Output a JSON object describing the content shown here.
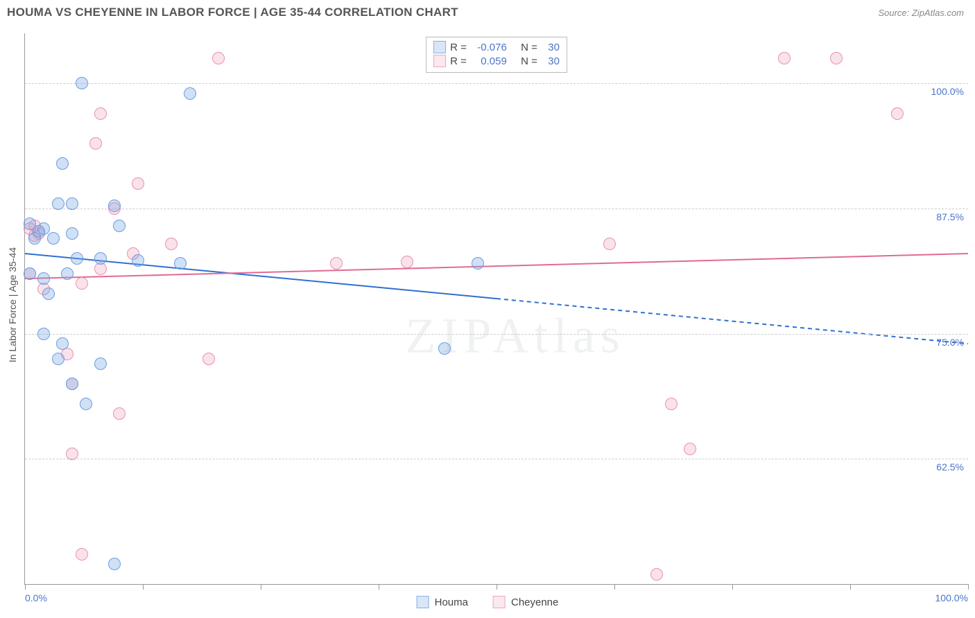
{
  "header": {
    "title": "HOUMA VS CHEYENNE IN LABOR FORCE | AGE 35-44 CORRELATION CHART",
    "source": "Source: ZipAtlas.com"
  },
  "watermark": "ZIPAtlas",
  "y_axis_title": "In Labor Force | Age 35-44",
  "chart": {
    "type": "scatter",
    "xlim": [
      0,
      100
    ],
    "ylim": [
      50,
      105
    ],
    "y_ticks": [
      {
        "value": 62.5,
        "label": "62.5%"
      },
      {
        "value": 75.0,
        "label": "75.0%"
      },
      {
        "value": 87.5,
        "label": "87.5%"
      },
      {
        "value": 100.0,
        "label": "100.0%"
      }
    ],
    "x_ticks": [
      0,
      12.5,
      25,
      37.5,
      50,
      62.5,
      75,
      87.5,
      100
    ],
    "x_tick_labels": [
      {
        "value": 0,
        "label": "0.0%"
      },
      {
        "value": 100,
        "label": "100.0%"
      }
    ],
    "point_radius": 9,
    "series": {
      "houma": {
        "label": "Houma",
        "fill": "rgba(120,165,225,0.35)",
        "stroke": "#6a9de0",
        "r_value": "-0.076",
        "n_value": "30",
        "trend": {
          "y_left": 83.0,
          "y_right": 74.0,
          "solid_until_x": 50,
          "color": "#2f6fd0",
          "width": 2
        },
        "points": [
          {
            "x": 2.0,
            "y": 85.5
          },
          {
            "x": 3.0,
            "y": 84.5
          },
          {
            "x": 5.0,
            "y": 85.0
          },
          {
            "x": 6.0,
            "y": 100.0
          },
          {
            "x": 4.0,
            "y": 92.0
          },
          {
            "x": 3.5,
            "y": 88.0
          },
          {
            "x": 5.0,
            "y": 88.0
          },
          {
            "x": 9.5,
            "y": 87.8
          },
          {
            "x": 5.5,
            "y": 82.5
          },
          {
            "x": 8.0,
            "y": 82.5
          },
          {
            "x": 12.0,
            "y": 82.3
          },
          {
            "x": 16.5,
            "y": 82.0
          },
          {
            "x": 2.0,
            "y": 80.5
          },
          {
            "x": 4.5,
            "y": 81.0
          },
          {
            "x": 2.5,
            "y": 79.0
          },
          {
            "x": 2.0,
            "y": 75.0
          },
          {
            "x": 4.0,
            "y": 74.0
          },
          {
            "x": 3.5,
            "y": 72.5
          },
          {
            "x": 8.0,
            "y": 72.0
          },
          {
            "x": 5.0,
            "y": 70.0
          },
          {
            "x": 6.5,
            "y": 68.0
          },
          {
            "x": 48.0,
            "y": 82.0
          },
          {
            "x": 44.5,
            "y": 73.5
          },
          {
            "x": 17.5,
            "y": 99.0
          },
          {
            "x": 9.5,
            "y": 52.0
          },
          {
            "x": 1.0,
            "y": 84.5
          },
          {
            "x": 1.5,
            "y": 85.2
          },
          {
            "x": 0.5,
            "y": 86.0
          },
          {
            "x": 0.5,
            "y": 81.0
          },
          {
            "x": 10.0,
            "y": 85.8
          }
        ]
      },
      "cheyenne": {
        "label": "Cheyenne",
        "fill": "rgba(240,160,185,0.30)",
        "stroke": "#e891ac",
        "r_value": "0.059",
        "n_value": "30",
        "trend": {
          "y_left": 80.5,
          "y_right": 83.0,
          "solid_until_x": 100,
          "color": "#e06a94",
          "width": 2
        },
        "points": [
          {
            "x": 0.5,
            "y": 85.5
          },
          {
            "x": 1.0,
            "y": 84.8
          },
          {
            "x": 1.5,
            "y": 85.0
          },
          {
            "x": 0.5,
            "y": 81.0
          },
          {
            "x": 8.0,
            "y": 97.0
          },
          {
            "x": 7.5,
            "y": 94.0
          },
          {
            "x": 9.5,
            "y": 87.5
          },
          {
            "x": 6.0,
            "y": 80.0
          },
          {
            "x": 8.0,
            "y": 81.5
          },
          {
            "x": 12.0,
            "y": 90.0
          },
          {
            "x": 15.5,
            "y": 84.0
          },
          {
            "x": 20.5,
            "y": 102.5
          },
          {
            "x": 4.5,
            "y": 73.0
          },
          {
            "x": 5.0,
            "y": 70.0
          },
          {
            "x": 10.0,
            "y": 67.0
          },
          {
            "x": 5.0,
            "y": 63.0
          },
          {
            "x": 6.0,
            "y": 53.0
          },
          {
            "x": 19.5,
            "y": 72.5
          },
          {
            "x": 33.0,
            "y": 82.0
          },
          {
            "x": 40.5,
            "y": 82.2
          },
          {
            "x": 62.0,
            "y": 84.0
          },
          {
            "x": 67.0,
            "y": 51.0
          },
          {
            "x": 68.5,
            "y": 68.0
          },
          {
            "x": 70.5,
            "y": 63.5
          },
          {
            "x": 80.5,
            "y": 102.5
          },
          {
            "x": 86.0,
            "y": 102.5
          },
          {
            "x": 92.5,
            "y": 97.0
          },
          {
            "x": 2.0,
            "y": 79.5
          },
          {
            "x": 11.5,
            "y": 83.0
          },
          {
            "x": 1.0,
            "y": 85.8
          }
        ]
      }
    }
  },
  "legend_stats": {
    "r_label": "R =",
    "n_label": "N ="
  },
  "bottom_legend": {
    "items": [
      "houma",
      "cheyenne"
    ]
  }
}
